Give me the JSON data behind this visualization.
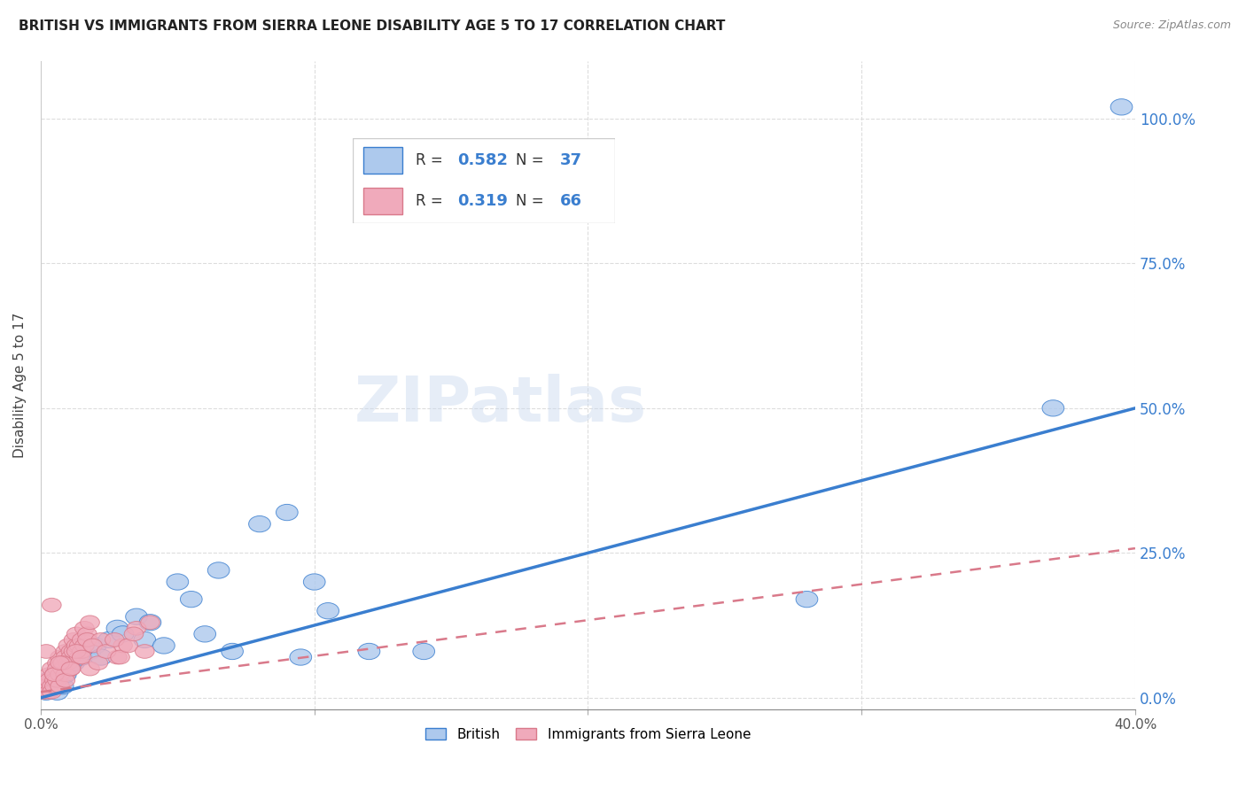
{
  "title": "BRITISH VS IMMIGRANTS FROM SIERRA LEONE DISABILITY AGE 5 TO 17 CORRELATION CHART",
  "source": "Source: ZipAtlas.com",
  "ylabel": "Disability Age 5 to 17",
  "xlim": [
    0,
    0.4
  ],
  "ylim": [
    -0.02,
    1.1
  ],
  "ytick_values": [
    0.0,
    0.25,
    0.5,
    0.75,
    1.0
  ],
  "british_color": "#adc9ed",
  "sierra_leone_color": "#f0aabb",
  "british_line_color": "#3a7ecf",
  "sierra_leone_line_color": "#d9798a",
  "british_R": 0.582,
  "british_N": 37,
  "sierra_leone_R": 0.319,
  "sierra_leone_N": 66,
  "right_axis_color": "#3a7ecf",
  "watermark": "ZIPatlas",
  "brit_slope": 1.25,
  "brit_intercept": 0.0,
  "sierra_slope": 0.62,
  "sierra_intercept": 0.01,
  "british_points": [
    [
      0.001,
      0.02
    ],
    [
      0.002,
      0.01
    ],
    [
      0.003,
      0.03
    ],
    [
      0.004,
      0.02
    ],
    [
      0.005,
      0.04
    ],
    [
      0.006,
      0.01
    ],
    [
      0.007,
      0.03
    ],
    [
      0.008,
      0.02
    ],
    [
      0.009,
      0.04
    ],
    [
      0.01,
      0.05
    ],
    [
      0.012,
      0.06
    ],
    [
      0.015,
      0.07
    ],
    [
      0.018,
      0.08
    ],
    [
      0.02,
      0.09
    ],
    [
      0.022,
      0.07
    ],
    [
      0.025,
      0.1
    ],
    [
      0.028,
      0.12
    ],
    [
      0.03,
      0.11
    ],
    [
      0.035,
      0.14
    ],
    [
      0.038,
      0.1
    ],
    [
      0.04,
      0.13
    ],
    [
      0.045,
      0.09
    ],
    [
      0.05,
      0.2
    ],
    [
      0.055,
      0.17
    ],
    [
      0.06,
      0.11
    ],
    [
      0.065,
      0.22
    ],
    [
      0.07,
      0.08
    ],
    [
      0.08,
      0.3
    ],
    [
      0.09,
      0.32
    ],
    [
      0.095,
      0.07
    ],
    [
      0.1,
      0.2
    ],
    [
      0.105,
      0.15
    ],
    [
      0.12,
      0.08
    ],
    [
      0.14,
      0.08
    ],
    [
      0.28,
      0.17
    ],
    [
      0.37,
      0.5
    ],
    [
      0.395,
      1.02
    ]
  ],
  "sierra_leone_points": [
    [
      0.001,
      0.01
    ],
    [
      0.001,
      0.02
    ],
    [
      0.001,
      0.01
    ],
    [
      0.002,
      0.03
    ],
    [
      0.002,
      0.02
    ],
    [
      0.003,
      0.04
    ],
    [
      0.003,
      0.01
    ],
    [
      0.003,
      0.03
    ],
    [
      0.004,
      0.02
    ],
    [
      0.004,
      0.05
    ],
    [
      0.004,
      0.01
    ],
    [
      0.005,
      0.04
    ],
    [
      0.005,
      0.03
    ],
    [
      0.005,
      0.02
    ],
    [
      0.006,
      0.06
    ],
    [
      0.006,
      0.05
    ],
    [
      0.006,
      0.03
    ],
    [
      0.007,
      0.04
    ],
    [
      0.007,
      0.02
    ],
    [
      0.007,
      0.07
    ],
    [
      0.008,
      0.06
    ],
    [
      0.008,
      0.05
    ],
    [
      0.009,
      0.08
    ],
    [
      0.009,
      0.07
    ],
    [
      0.009,
      0.04
    ],
    [
      0.01,
      0.09
    ],
    [
      0.01,
      0.06
    ],
    [
      0.011,
      0.05
    ],
    [
      0.011,
      0.08
    ],
    [
      0.011,
      0.07
    ],
    [
      0.012,
      0.1
    ],
    [
      0.012,
      0.08
    ],
    [
      0.013,
      0.09
    ],
    [
      0.013,
      0.11
    ],
    [
      0.014,
      0.07
    ],
    [
      0.014,
      0.09
    ],
    [
      0.015,
      0.08
    ],
    [
      0.015,
      0.1
    ],
    [
      0.016,
      0.12
    ],
    [
      0.016,
      0.09
    ],
    [
      0.017,
      0.11
    ],
    [
      0.017,
      0.1
    ],
    [
      0.018,
      0.13
    ],
    [
      0.004,
      0.16
    ],
    [
      0.013,
      0.08
    ],
    [
      0.008,
      0.06
    ],
    [
      0.018,
      0.05
    ],
    [
      0.022,
      0.1
    ],
    [
      0.028,
      0.07
    ],
    [
      0.03,
      0.09
    ],
    [
      0.035,
      0.12
    ],
    [
      0.002,
      0.08
    ],
    [
      0.005,
      0.04
    ],
    [
      0.007,
      0.06
    ],
    [
      0.009,
      0.03
    ],
    [
      0.011,
      0.05
    ],
    [
      0.015,
      0.07
    ],
    [
      0.019,
      0.09
    ],
    [
      0.021,
      0.06
    ],
    [
      0.024,
      0.08
    ],
    [
      0.027,
      0.1
    ],
    [
      0.029,
      0.07
    ],
    [
      0.032,
      0.09
    ],
    [
      0.034,
      0.11
    ],
    [
      0.038,
      0.08
    ],
    [
      0.04,
      0.13
    ]
  ]
}
